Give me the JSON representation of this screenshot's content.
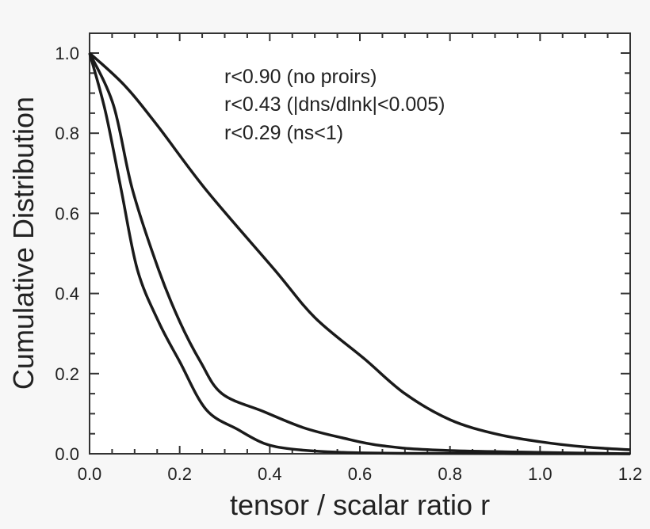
{
  "chart_data": {
    "type": "line",
    "title": "",
    "xlabel": "tensor / scalar ratio r",
    "ylabel": "Cumulative Distribution",
    "xlim": [
      0,
      1.2
    ],
    "ylim": [
      0,
      1.05
    ],
    "xticks": [
      "0.0",
      "0.2",
      "0.4",
      "0.6",
      "0.8",
      "1.0",
      "1.2"
    ],
    "yticks": [
      "0.0",
      "0.2",
      "0.4",
      "0.6",
      "0.8",
      "1.0"
    ],
    "grid": false,
    "legend_position": "top-center",
    "annotations": [
      "r<0.90 (no proirs)",
      "r<0.43 (|dns/dlnk|<0.005)",
      "r<0.29 (ns<1)"
    ],
    "series": [
      {
        "name": "r<0.90 (no proirs)",
        "x": [
          0,
          0.077,
          0.15,
          0.259,
          0.41,
          0.5,
          0.61,
          0.7,
          0.8,
          0.9,
          1.0,
          1.1,
          1.2
        ],
        "y": [
          1.0,
          0.92,
          0.82,
          0.658,
          0.46,
          0.34,
          0.237,
          0.15,
          0.085,
          0.05,
          0.03,
          0.017,
          0.01
        ]
      },
      {
        "name": "r<0.43 (|dns/dlnk|<0.005)",
        "x": [
          0,
          0.053,
          0.095,
          0.153,
          0.2,
          0.246,
          0.294,
          0.387,
          0.475,
          0.56,
          0.65,
          0.8,
          1.2
        ],
        "y": [
          1.0,
          0.87,
          0.66,
          0.46,
          0.33,
          0.23,
          0.15,
          0.105,
          0.065,
          0.04,
          0.02,
          0.008,
          0.0
        ]
      },
      {
        "name": "r<0.29 (ns<1)",
        "x": [
          0,
          0.035,
          0.07,
          0.106,
          0.153,
          0.2,
          0.259,
          0.33,
          0.387,
          0.447,
          0.55,
          0.7,
          1.2
        ],
        "y": [
          1.0,
          0.855,
          0.66,
          0.46,
          0.33,
          0.23,
          0.11,
          0.06,
          0.026,
          0.012,
          0.004,
          0.001,
          0.0
        ]
      }
    ]
  }
}
